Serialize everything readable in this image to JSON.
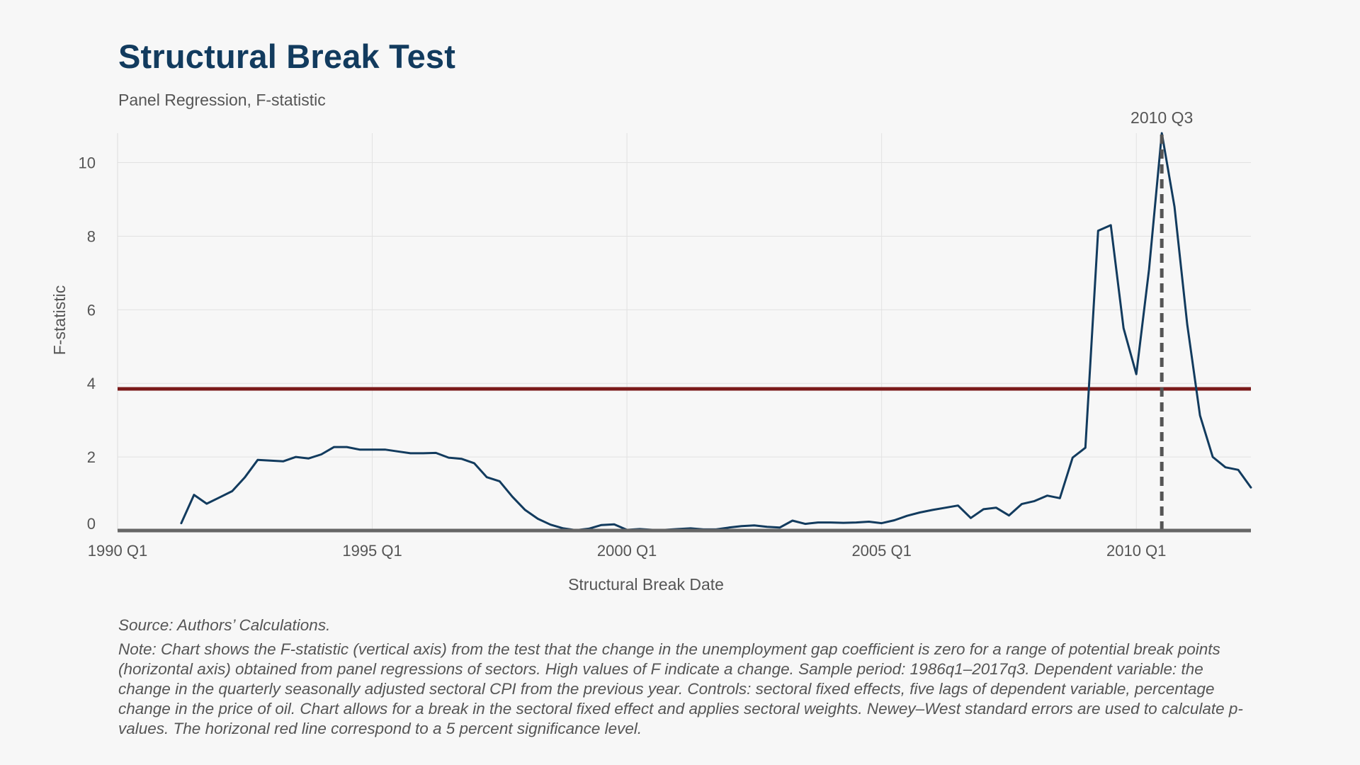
{
  "chart_data": {
    "type": "line",
    "title": "Structural Break Test",
    "subtitle": "Panel Regression, F-statistic",
    "xlabel": "Structural Break Date",
    "ylabel": "F-statistic",
    "xlim": [
      1990.0,
      2012.25
    ],
    "ylim": [
      0,
      10.8
    ],
    "x_ticks": [
      {
        "value": 1990.0,
        "label": "1990 Q1"
      },
      {
        "value": 1995.0,
        "label": "1995 Q1"
      },
      {
        "value": 2000.0,
        "label": "2000 Q1"
      },
      {
        "value": 2005.0,
        "label": "2005 Q1"
      },
      {
        "value": 2010.0,
        "label": "2010 Q1"
      }
    ],
    "y_ticks": [
      {
        "value": 0,
        "label": "0"
      },
      {
        "value": 2,
        "label": "2"
      },
      {
        "value": 4,
        "label": "4"
      },
      {
        "value": 6,
        "label": "6"
      },
      {
        "value": 8,
        "label": "8"
      },
      {
        "value": 10,
        "label": "10"
      }
    ],
    "grid": true,
    "series": [
      {
        "color": "#123b5e",
        "x": [
          1991.25,
          1991.5,
          1991.75,
          1992.0,
          1992.25,
          1992.5,
          1992.75,
          1993.0,
          1993.25,
          1993.5,
          1993.75,
          1994.0,
          1994.25,
          1994.5,
          1994.75,
          1995.0,
          1995.25,
          1995.5,
          1995.75,
          1996.0,
          1996.25,
          1996.5,
          1996.75,
          1997.0,
          1997.25,
          1997.5,
          1997.75,
          1998.0,
          1998.25,
          1998.5,
          1998.75,
          1999.0,
          1999.25,
          1999.5,
          1999.75,
          2000.0,
          2000.25,
          2000.5,
          2000.75,
          2001.0,
          2001.25,
          2001.5,
          2001.75,
          2002.0,
          2002.25,
          2002.5,
          2002.75,
          2003.0,
          2003.25,
          2003.5,
          2003.75,
          2004.0,
          2004.25,
          2004.5,
          2004.75,
          2005.0,
          2005.25,
          2005.5,
          2005.75,
          2006.0,
          2006.25,
          2006.5,
          2006.75,
          2007.0,
          2007.25,
          2007.5,
          2007.75,
          2008.0,
          2008.25,
          2008.5,
          2008.75,
          2009.0,
          2009.25,
          2009.5,
          2009.75,
          2010.0,
          2010.25,
          2010.5,
          2010.75,
          2011.0,
          2011.25,
          2011.5,
          2011.75,
          2012.0,
          2012.25
        ],
        "y": [
          0.2,
          0.97,
          0.73,
          0.9,
          1.07,
          1.45,
          1.92,
          1.9,
          1.88,
          2.0,
          1.96,
          2.07,
          2.27,
          2.27,
          2.2,
          2.2,
          2.2,
          2.15,
          2.1,
          2.1,
          2.11,
          1.98,
          1.95,
          1.83,
          1.45,
          1.34,
          0.92,
          0.56,
          0.32,
          0.16,
          0.06,
          0.01,
          0.05,
          0.15,
          0.17,
          0.02,
          0.04,
          0.02,
          0.02,
          0.04,
          0.06,
          0.03,
          0.03,
          0.08,
          0.12,
          0.14,
          0.1,
          0.08,
          0.27,
          0.18,
          0.22,
          0.22,
          0.21,
          0.22,
          0.24,
          0.2,
          0.28,
          0.4,
          0.49,
          0.56,
          0.62,
          0.68,
          0.34,
          0.58,
          0.62,
          0.41,
          0.72,
          0.8,
          0.95,
          0.88,
          1.98,
          2.25,
          8.15,
          8.3,
          5.5,
          4.25,
          7.1,
          10.8,
          8.8,
          5.6,
          3.13,
          2.0,
          1.72,
          1.65,
          1.17
        ]
      }
    ],
    "significance_line": {
      "y": 3.85,
      "color": "#7a1a1a"
    },
    "break_marker": {
      "x": 2010.5,
      "label": "2010 Q3",
      "color": "#555555"
    }
  },
  "footer": {
    "source": "Source: Authors’ Calculations.",
    "note": "Note:  Chart shows the F-statistic (vertical axis) from the test that the change in the unemployment gap coefficient is zero for a range of potential break points (horizontal axis) obtained from panel regressions of sectors. High values of F indicate a change. Sample period: 1986q1–2017q3. Dependent variable: the change in the quarterly seasonally adjusted sectoral CPI from the previous year. Controls: sectoral fixed effects, five lags of dependent variable, percentage change in the price of oil. Chart allows for a break in the sectoral fixed effect and applies sectoral weights. Newey–West standard errors are used to calculate p-values. The horizonal red line correspond to a 5 percent significance level."
  }
}
